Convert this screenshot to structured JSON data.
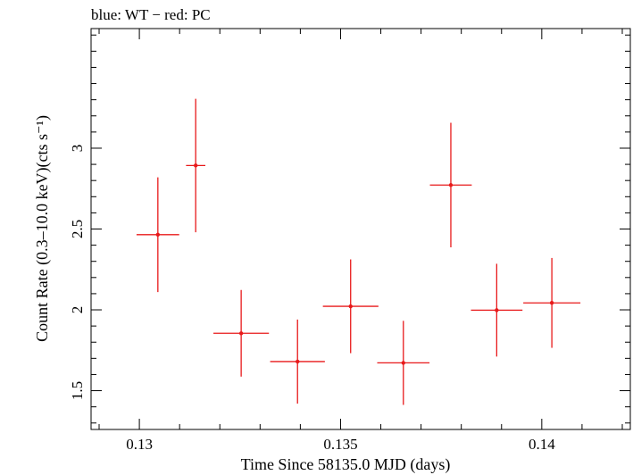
{
  "chart_data": {
    "type": "scatter",
    "title": "blue: WT − red: PC",
    "xlabel": "Time Since 58135.0 MJD (days)",
    "ylabel": "Count Rate (0.3–10.0 keV)(cts s⁻¹)",
    "xlim": [
      0.1288,
      0.1422
    ],
    "ylim": [
      1.26,
      3.74
    ],
    "xticks": [
      0.13,
      0.135,
      0.14
    ],
    "xtick_labels": [
      "0.13",
      "0.135",
      "0.14"
    ],
    "yticks": [
      1.5,
      2,
      2.5,
      3
    ],
    "ytick_labels": [
      "1.5",
      "2",
      "2.5",
      "3"
    ],
    "grid": false,
    "series": [
      {
        "color": "#e8191a",
        "points": [
          {
            "x": 0.13046,
            "y": 2.465,
            "xerr": 0.00053,
            "yerr_low": 0.355,
            "yerr_high": 0.355
          },
          {
            "x": 0.1314,
            "y": 2.893,
            "xerr": 0.00024,
            "yerr_low": 0.413,
            "yerr_high": 0.413
          },
          {
            "x": 0.13253,
            "y": 1.855,
            "xerr": 0.00069,
            "yerr_low": 0.268,
            "yerr_high": 0.268
          },
          {
            "x": 0.13393,
            "y": 1.68,
            "xerr": 0.00068,
            "yerr_low": 0.26,
            "yerr_high": 0.26
          },
          {
            "x": 0.13525,
            "y": 2.022,
            "xerr": 0.00069,
            "yerr_low": 0.29,
            "yerr_high": 0.29
          },
          {
            "x": 0.13656,
            "y": 1.672,
            "xerr": 0.00065,
            "yerr_low": 0.26,
            "yerr_high": 0.26
          },
          {
            "x": 0.13774,
            "y": 2.772,
            "xerr": 0.00052,
            "yerr_low": 0.385,
            "yerr_high": 0.385
          },
          {
            "x": 0.13888,
            "y": 1.998,
            "xerr": 0.00064,
            "yerr_low": 0.287,
            "yerr_high": 0.287
          },
          {
            "x": 0.14025,
            "y": 2.043,
            "xerr": 0.00071,
            "yerr_low": 0.278,
            "yerr_high": 0.278
          }
        ]
      }
    ]
  }
}
